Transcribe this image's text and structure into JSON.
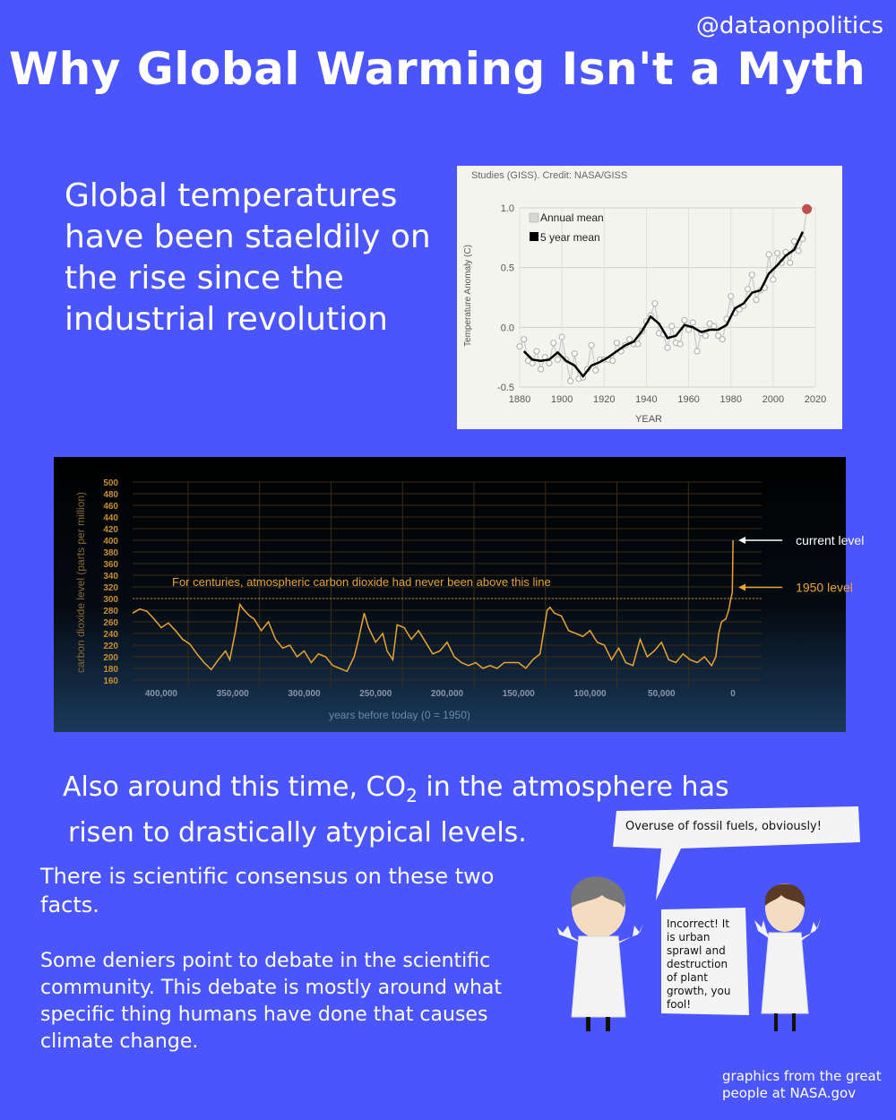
{
  "header": {
    "handle": "@dataonpolitics",
    "title": "Why Global Warming Isn't a Myth"
  },
  "intro": {
    "text": "Global temperatures have been staeldily on the rise since the industrial revolution"
  },
  "co2_caption": {
    "line1_prefix": "Also around this time, CO",
    "line1_sub": "2",
    "line1_suffix": " in the atmosphere has",
    "line2": "risen to drastically atypical levels."
  },
  "consensus": "There is scientific consensus on these two facts.",
  "deniers": "Some deniers point to debate in the scientific community. This debate is mostly around what specific thing humans have done that causes climate change.",
  "credit": "graphics from the great people at NASA.gov",
  "cartoon": {
    "bubble_left": "Overuse of fossil fuels, obviously!",
    "bubble_right": [
      "Incorrect! It",
      "is urban",
      "sprawl and",
      "destruction",
      "of plant",
      "growth, you",
      "fool!"
    ]
  },
  "colors": {
    "background": "#4a55fb",
    "temp_line": "#000000",
    "temp_points": "#bdbdbd",
    "temp_highlight": "#c0504d",
    "co2_line": "#e8a435",
    "co2_text": "#e8a435"
  },
  "chart_data": [
    {
      "type": "line",
      "source_line": "Studies (GISS). Credit: NASA/GISS",
      "xlabel": "YEAR",
      "ylabel": "Temperature Anomaly (C)",
      "xlim": [
        1880,
        2020
      ],
      "ylim": [
        -0.5,
        1.0
      ],
      "xticks": [
        1880,
        1900,
        1920,
        1940,
        1960,
        1980,
        2000,
        2020
      ],
      "yticks": [
        1.0,
        0.5,
        0.0,
        -0.5
      ],
      "ytick_labels": [
        "1.0",
        "0.5",
        "0.0",
        "-0.5"
      ],
      "grid": true,
      "legend_position": "top-left",
      "series": [
        {
          "name": "Annual mean",
          "style": "points",
          "x": [
            1880,
            1882,
            1884,
            1886,
            1888,
            1890,
            1892,
            1894,
            1896,
            1898,
            1900,
            1902,
            1904,
            1906,
            1908,
            1910,
            1912,
            1914,
            1916,
            1918,
            1920,
            1922,
            1924,
            1926,
            1928,
            1930,
            1932,
            1934,
            1936,
            1938,
            1940,
            1942,
            1944,
            1946,
            1948,
            1950,
            1952,
            1954,
            1956,
            1958,
            1960,
            1962,
            1964,
            1966,
            1968,
            1970,
            1972,
            1974,
            1976,
            1978,
            1980,
            1982,
            1984,
            1986,
            1988,
            1990,
            1992,
            1994,
            1996,
            1998,
            2000,
            2002,
            2004,
            2006,
            2008,
            2010,
            2012,
            2014,
            2016
          ],
          "y": [
            -0.16,
            -0.1,
            -0.28,
            -0.3,
            -0.2,
            -0.35,
            -0.25,
            -0.3,
            -0.13,
            -0.27,
            -0.08,
            -0.27,
            -0.45,
            -0.22,
            -0.43,
            -0.42,
            -0.35,
            -0.15,
            -0.36,
            -0.27,
            -0.27,
            -0.27,
            -0.28,
            -0.13,
            -0.2,
            -0.15,
            -0.1,
            -0.14,
            -0.14,
            -0.03,
            0.05,
            0.1,
            0.2,
            -0.05,
            -0.06,
            -0.17,
            0.01,
            -0.13,
            -0.14,
            0.06,
            -0.02,
            0.04,
            -0.2,
            -0.05,
            -0.07,
            0.03,
            0.01,
            -0.07,
            -0.1,
            0.07,
            0.26,
            0.12,
            0.15,
            0.18,
            0.32,
            0.44,
            0.23,
            0.31,
            0.33,
            0.61,
            0.4,
            0.62,
            0.54,
            0.63,
            0.54,
            0.72,
            0.64,
            0.74,
            0.99
          ]
        },
        {
          "name": "5 year mean",
          "style": "line",
          "x": [
            1882,
            1886,
            1890,
            1894,
            1898,
            1902,
            1906,
            1910,
            1914,
            1918,
            1922,
            1926,
            1930,
            1934,
            1938,
            1942,
            1946,
            1950,
            1954,
            1958,
            1962,
            1966,
            1970,
            1974,
            1978,
            1982,
            1986,
            1990,
            1994,
            1998,
            2002,
            2006,
            2010,
            2014
          ],
          "y": [
            -0.2,
            -0.27,
            -0.28,
            -0.27,
            -0.21,
            -0.28,
            -0.32,
            -0.41,
            -0.32,
            -0.29,
            -0.25,
            -0.2,
            -0.15,
            -0.12,
            -0.03,
            0.09,
            0.03,
            -0.09,
            -0.07,
            0.02,
            0.0,
            -0.04,
            -0.02,
            -0.02,
            0.02,
            0.16,
            0.2,
            0.29,
            0.31,
            0.45,
            0.52,
            0.6,
            0.65,
            0.8
          ]
        }
      ],
      "highlight_point": {
        "x": 2016,
        "y": 0.99
      }
    },
    {
      "type": "line",
      "ylabel": "carbon dioxide level (parts per million)",
      "xlabel": "years before today (0 = 1950)",
      "xlim": [
        420000,
        -20000
      ],
      "ylim": [
        160,
        500
      ],
      "xticks": [
        400000,
        350000,
        300000,
        250000,
        200000,
        150000,
        100000,
        50000,
        0
      ],
      "xtick_labels": [
        "400,000",
        "350,000",
        "300,000",
        "250,000",
        "200,000",
        "150,000",
        "100,000",
        "50,000",
        "0"
      ],
      "yticks": [
        160,
        180,
        200,
        220,
        240,
        260,
        280,
        300,
        320,
        340,
        360,
        380,
        400,
        420,
        440,
        460,
        480,
        500
      ],
      "grid": true,
      "annotations": [
        {
          "text": "For centuries, atmospheric carbon dioxide had never been above this line",
          "y": 300
        },
        {
          "text": "current level",
          "y": 400
        },
        {
          "text": "1950 level",
          "y": 310
        }
      ],
      "series": [
        {
          "name": "",
          "x": [
            420000,
            415000,
            410000,
            405000,
            400000,
            395000,
            390000,
            385000,
            380000,
            375000,
            370000,
            365000,
            360000,
            355000,
            352000,
            348000,
            345000,
            342000,
            338000,
            335000,
            330000,
            325000,
            320000,
            315000,
            310000,
            305000,
            300000,
            295000,
            290000,
            285000,
            280000,
            275000,
            270000,
            265000,
            262000,
            258000,
            255000,
            250000,
            245000,
            242000,
            238000,
            235000,
            230000,
            225000,
            220000,
            215000,
            210000,
            205000,
            200000,
            195000,
            190000,
            185000,
            180000,
            175000,
            170000,
            165000,
            160000,
            155000,
            150000,
            145000,
            140000,
            135000,
            130000,
            128000,
            125000,
            120000,
            115000,
            110000,
            105000,
            100000,
            95000,
            90000,
            85000,
            80000,
            75000,
            70000,
            65000,
            60000,
            55000,
            50000,
            45000,
            40000,
            35000,
            30000,
            25000,
            20000,
            15000,
            12000,
            10000,
            8000,
            5000,
            3000,
            1500,
            500,
            0
          ],
          "y": [
            275,
            282,
            278,
            265,
            250,
            258,
            245,
            230,
            222,
            205,
            190,
            178,
            195,
            210,
            195,
            245,
            290,
            280,
            270,
            265,
            245,
            260,
            230,
            215,
            220,
            200,
            210,
            190,
            205,
            200,
            185,
            180,
            175,
            200,
            230,
            275,
            250,
            225,
            240,
            210,
            195,
            255,
            250,
            230,
            245,
            225,
            205,
            210,
            225,
            200,
            190,
            185,
            190,
            180,
            185,
            180,
            190,
            190,
            190,
            180,
            195,
            205,
            280,
            285,
            275,
            270,
            245,
            240,
            235,
            245,
            225,
            220,
            195,
            215,
            190,
            185,
            230,
            200,
            210,
            225,
            195,
            190,
            205,
            195,
            190,
            200,
            185,
            200,
            240,
            260,
            265,
            280,
            300,
            310,
            400
          ]
        }
      ]
    }
  ]
}
